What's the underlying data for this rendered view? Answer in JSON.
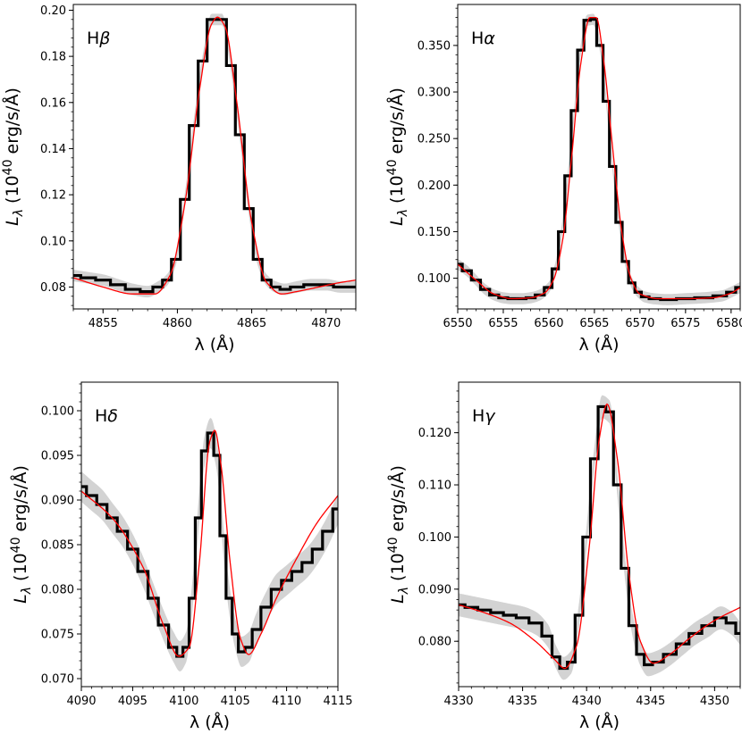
{
  "chart_data": [
    {
      "type": "line",
      "panel_label": "Hβ",
      "xlabel": "λ (Å)",
      "ylabel": "L_λ (10^40 erg/s/Å)",
      "xlim": [
        4853,
        4872
      ],
      "ylim": [
        0.0705,
        0.2025
      ],
      "xticks": [
        4855,
        4860,
        4865,
        4870
      ],
      "yticks": [
        0.08,
        0.1,
        0.12,
        0.14,
        0.16,
        0.18,
        0.2
      ],
      "xtick_labels": [
        "4855",
        "4860",
        "4865",
        "4870"
      ],
      "ytick_labels": [
        "0.08",
        "0.10",
        "0.12",
        "0.14",
        "0.16",
        "0.18",
        "0.20"
      ],
      "ytick_decimals": 2,
      "series": [
        {
          "name": "observed",
          "style": "step",
          "color": "#000000",
          "x": [
            4853,
            4854,
            4855,
            4856,
            4857,
            4858,
            4858.7,
            4859.3,
            4859.9,
            4860.5,
            4861.1,
            4861.7,
            4862.3,
            4863.0,
            4863.6,
            4864.2,
            4864.8,
            4865.4,
            4866.0,
            4866.6,
            4867.2,
            4868,
            4869,
            4870,
            4871,
            4872
          ],
          "y": [
            0.085,
            0.084,
            0.083,
            0.081,
            0.079,
            0.078,
            0.08,
            0.083,
            0.092,
            0.118,
            0.15,
            0.178,
            0.196,
            0.196,
            0.176,
            0.146,
            0.114,
            0.092,
            0.083,
            0.08,
            0.079,
            0.08,
            0.081,
            0.081,
            0.08,
            0.08
          ]
        },
        {
          "name": "model",
          "style": "smooth",
          "color": "#ff0000",
          "x": [
            4853,
            4855,
            4857,
            4858.5,
            4859.5,
            4860.5,
            4861.5,
            4862.3,
            4862.7,
            4863.2,
            4864,
            4865,
            4866,
            4867,
            4868,
            4869.5,
            4871,
            4872
          ],
          "y": [
            0.084,
            0.08,
            0.077,
            0.077,
            0.085,
            0.116,
            0.166,
            0.194,
            0.197,
            0.193,
            0.16,
            0.108,
            0.082,
            0.077,
            0.078,
            0.08,
            0.082,
            0.083
          ]
        },
        {
          "name": "uncertainty band",
          "style": "band",
          "color": "#d3d3d3",
          "half_width": 0.0025
        }
      ]
    },
    {
      "type": "line",
      "panel_label": "Hα",
      "xlabel": "λ (Å)",
      "ylabel": "L_λ (10^40 erg/s/Å)",
      "xlim": [
        6550,
        6581
      ],
      "ylim": [
        0.067,
        0.394
      ],
      "xticks": [
        6550,
        6555,
        6560,
        6565,
        6570,
        6575,
        6580
      ],
      "yticks": [
        0.1,
        0.15,
        0.2,
        0.25,
        0.3,
        0.35
      ],
      "xtick_labels": [
        "6550",
        "6555",
        "6560",
        "6565",
        "6570",
        "6575",
        "6580"
      ],
      "ytick_labels": [
        "0.100",
        "0.150",
        "0.200",
        "0.250",
        "0.300",
        "0.350"
      ],
      "ytick_decimals": 3,
      "series": [
        {
          "name": "observed",
          "style": "step",
          "color": "#000000",
          "x": [
            6550,
            6551,
            6552,
            6553,
            6554,
            6555,
            6556,
            6557,
            6558,
            6559,
            6560,
            6560.7,
            6561.4,
            6562.1,
            6562.8,
            6563.5,
            6564.2,
            6564.9,
            6565.6,
            6566.3,
            6567.0,
            6567.7,
            6568.4,
            6569.1,
            6569.8,
            6570.5,
            6571.5,
            6573,
            6575,
            6577,
            6579,
            6580,
            6581
          ],
          "y": [
            0.115,
            0.108,
            0.098,
            0.088,
            0.082,
            0.079,
            0.078,
            0.078,
            0.079,
            0.082,
            0.09,
            0.11,
            0.15,
            0.21,
            0.28,
            0.345,
            0.377,
            0.378,
            0.35,
            0.29,
            0.22,
            0.16,
            0.118,
            0.095,
            0.085,
            0.08,
            0.078,
            0.077,
            0.078,
            0.079,
            0.081,
            0.085,
            0.09
          ]
        },
        {
          "name": "model",
          "style": "smooth",
          "color": "#ff0000",
          "x": [
            6550,
            6552,
            6554,
            6556,
            6558,
            6559.5,
            6560.5,
            6561.5,
            6562.5,
            6563.5,
            6564.5,
            6565.2,
            6566,
            6567,
            6568,
            6569,
            6570,
            6572,
            6575,
            6578,
            6580,
            6581
          ],
          "y": [
            0.115,
            0.098,
            0.083,
            0.078,
            0.079,
            0.084,
            0.098,
            0.14,
            0.23,
            0.33,
            0.38,
            0.38,
            0.335,
            0.24,
            0.15,
            0.1,
            0.083,
            0.078,
            0.078,
            0.079,
            0.084,
            0.09
          ]
        },
        {
          "name": "uncertainty band",
          "style": "band",
          "color": "#d3d3d3",
          "half_width": 0.006
        }
      ]
    },
    {
      "type": "line",
      "panel_label": "Hδ",
      "xlabel": "λ (Å)",
      "ylabel": "L_λ (10^40 erg/s/Å)",
      "xlim": [
        4090,
        4115
      ],
      "ylim": [
        0.0691,
        0.1032
      ],
      "xticks": [
        4090,
        4095,
        4100,
        4105,
        4110,
        4115
      ],
      "yticks": [
        0.07,
        0.075,
        0.08,
        0.085,
        0.09,
        0.095,
        0.1
      ],
      "xtick_labels": [
        "4090",
        "4095",
        "4100",
        "4105",
        "4110",
        "4115"
      ],
      "ytick_labels": [
        "0.070",
        "0.075",
        "0.080",
        "0.085",
        "0.090",
        "0.095",
        "0.100"
      ],
      "ytick_decimals": 3,
      "series": [
        {
          "name": "observed",
          "style": "step",
          "color": "#000000",
          "x": [
            4090,
            4091,
            4092,
            4093,
            4094,
            4095,
            4096,
            4097,
            4098,
            4099,
            4099.6,
            4100.2,
            4100.8,
            4101.4,
            4102,
            4102.6,
            4103.2,
            4103.8,
            4104.4,
            4105,
            4105.6,
            4106.3,
            4107,
            4108,
            4109,
            4110,
            4111,
            4112,
            4113,
            4114,
            4115
          ],
          "y": [
            0.0915,
            0.0905,
            0.0895,
            0.088,
            0.0865,
            0.0845,
            0.082,
            0.079,
            0.076,
            0.0735,
            0.0725,
            0.0735,
            0.079,
            0.088,
            0.0955,
            0.0975,
            0.095,
            0.086,
            0.079,
            0.075,
            0.073,
            0.0735,
            0.0755,
            0.078,
            0.08,
            0.081,
            0.082,
            0.083,
            0.0845,
            0.0865,
            0.089
          ]
        },
        {
          "name": "model",
          "style": "smooth",
          "color": "#ff0000",
          "x": [
            4090,
            4093,
            4096,
            4098,
            4099.5,
            4100.5,
            4101.5,
            4102.5,
            4103,
            4103.6,
            4104.5,
            4105.5,
            4106.3,
            4107.5,
            4109,
            4111,
            4113,
            4115
          ],
          "y": [
            0.091,
            0.088,
            0.0825,
            0.076,
            0.0725,
            0.0735,
            0.083,
            0.0965,
            0.0978,
            0.094,
            0.083,
            0.0745,
            0.0727,
            0.075,
            0.079,
            0.0835,
            0.0875,
            0.0905
          ]
        },
        {
          "name": "uncertainty band",
          "style": "band",
          "color": "#d3d3d3",
          "half_width": 0.0017
        }
      ]
    },
    {
      "type": "line",
      "panel_label": "Hγ",
      "xlabel": "λ (Å)",
      "ylabel": "L_λ (10^40 erg/s/Å)",
      "xlim": [
        4330,
        4352
      ],
      "ylim": [
        0.0713,
        0.1297
      ],
      "xticks": [
        4330,
        4335,
        4340,
        4345,
        4350
      ],
      "yticks": [
        0.08,
        0.09,
        0.1,
        0.11,
        0.12
      ],
      "xtick_labels": [
        "4330",
        "4335",
        "4340",
        "4345",
        "4350"
      ],
      "ytick_labels": [
        "0.080",
        "0.090",
        "0.100",
        "0.110",
        "0.120"
      ],
      "ytick_decimals": 3,
      "series": [
        {
          "name": "observed",
          "style": "step",
          "color": "#000000",
          "x": [
            4330,
            4331,
            4332,
            4333,
            4334,
            4335,
            4336,
            4337,
            4337.6,
            4338.2,
            4338.8,
            4339.4,
            4340,
            4340.6,
            4341.2,
            4341.8,
            4342.4,
            4343,
            4343.6,
            4344.2,
            4344.8,
            4345.5,
            4346.5,
            4347.5,
            4348.5,
            4349.5,
            4350.5,
            4351.3,
            4352
          ],
          "y": [
            0.087,
            0.0865,
            0.086,
            0.0855,
            0.085,
            0.0845,
            0.0835,
            0.081,
            0.077,
            0.0748,
            0.076,
            0.085,
            0.1,
            0.115,
            0.125,
            0.124,
            0.11,
            0.094,
            0.083,
            0.0775,
            0.0755,
            0.076,
            0.0775,
            0.0795,
            0.0815,
            0.083,
            0.0845,
            0.0835,
            0.0815
          ]
        },
        {
          "name": "model",
          "style": "smooth",
          "color": "#ff0000",
          "x": [
            4330,
            4332,
            4334,
            4336,
            4337.5,
            4338.3,
            4339.2,
            4340.2,
            4341,
            4341.6,
            4342.4,
            4343.3,
            4344.2,
            4345.2,
            4346.5,
            4348,
            4350,
            4352
          ],
          "y": [
            0.087,
            0.0855,
            0.0835,
            0.08,
            0.0765,
            0.0748,
            0.079,
            0.098,
            0.119,
            0.1255,
            0.115,
            0.093,
            0.08,
            0.0758,
            0.0775,
            0.0805,
            0.084,
            0.0865
          ]
        },
        {
          "name": "uncertainty band",
          "style": "band",
          "color": "#d3d3d3",
          "half_width": 0.0022
        }
      ]
    }
  ]
}
